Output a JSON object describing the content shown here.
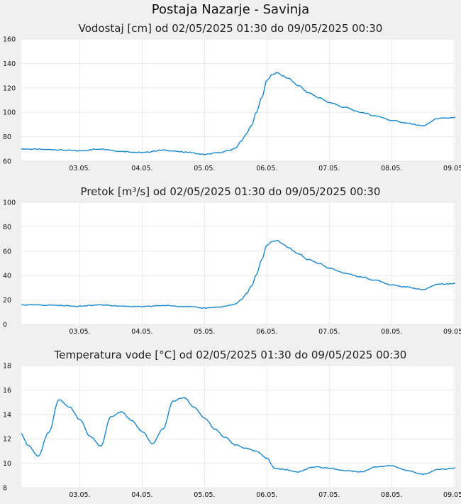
{
  "page": {
    "title": "Postaja Nazarje - Savinja"
  },
  "colors": {
    "background": "#f0f0f0",
    "plot_background": "#ffffff",
    "grid": "#e9e9e9",
    "series": "#1787d0"
  },
  "chart_data": [
    {
      "type": "line",
      "title": "Vodostaj [cm] od 02/05/2025 01:30 do 09/05/2025 00:30",
      "xlabel": "",
      "ylabel": "",
      "ylim": [
        60,
        160
      ],
      "yticks": [
        "60",
        "80",
        "100",
        "120",
        "140",
        "160"
      ],
      "xticks": [
        "03.05.",
        "04.05.",
        "05.05.",
        "06.05.",
        "07.05.",
        "08.05.",
        "09.05."
      ],
      "xrange_days": [
        "02.05. 01:30",
        "09.05. 00:30"
      ],
      "grid": true,
      "series": [
        {
          "x": [
            "02.05. 01:30",
            "02.05. 12:00",
            "03.05. 00:00",
            "03.05. 08:00",
            "03.05. 16:00",
            "04.05. 00:00",
            "04.05. 08:00",
            "04.05. 16:00",
            "05.05. 00:00",
            "05.05. 06:00",
            "05.05. 10:00",
            "05.05. 12:00",
            "05.05. 14:00",
            "05.05. 16:00",
            "05.05. 18:00",
            "05.05. 20:00",
            "05.05. 22:00",
            "06.05. 00:00",
            "06.05. 02:00",
            "06.05. 04:00",
            "06.05. 06:00",
            "06.05. 08:00",
            "06.05. 12:00",
            "06.05. 16:00",
            "06.05. 20:00",
            "07.05. 00:00",
            "07.05. 06:00",
            "07.05. 12:00",
            "07.05. 18:00",
            "08.05. 00:00",
            "08.05. 06:00",
            "08.05. 12:00",
            "08.05. 18:00",
            "09.05. 00:30"
          ],
          "y": [
            70,
            69.5,
            68.5,
            70,
            68,
            67,
            69,
            67.5,
            65.5,
            67,
            69,
            71,
            76,
            82,
            89,
            100,
            112,
            126,
            131,
            132.5,
            130,
            128,
            122,
            116,
            112,
            108,
            104,
            100,
            97,
            93.5,
            91,
            89,
            95,
            95.5
          ]
        }
      ]
    },
    {
      "type": "line",
      "title": "Pretok [m³/s] od 02/05/2025 01:30 do 09/05/2025 00:30",
      "xlabel": "",
      "ylabel": "",
      "ylim": [
        0,
        100
      ],
      "yticks": [
        "0",
        "20",
        "40",
        "60",
        "80",
        "100"
      ],
      "xticks": [
        "03.05.",
        "04.05.",
        "05.05.",
        "06.05.",
        "07.05.",
        "08.05.",
        "09.05."
      ],
      "xrange_days": [
        "02.05. 01:30",
        "09.05. 00:30"
      ],
      "grid": true,
      "series": [
        {
          "x": [
            "02.05. 01:30",
            "02.05. 12:00",
            "03.05. 00:00",
            "03.05. 08:00",
            "03.05. 16:00",
            "04.05. 00:00",
            "04.05. 08:00",
            "04.05. 16:00",
            "05.05. 00:00",
            "05.05. 06:00",
            "05.05. 10:00",
            "05.05. 12:00",
            "05.05. 14:00",
            "05.05. 16:00",
            "05.05. 18:00",
            "05.05. 20:00",
            "05.05. 22:00",
            "06.05. 00:00",
            "06.05. 02:00",
            "06.05. 04:00",
            "06.05. 06:00",
            "06.05. 08:00",
            "06.05. 12:00",
            "06.05. 16:00",
            "06.05. 20:00",
            "07.05. 00:00",
            "07.05. 06:00",
            "07.05. 12:00",
            "07.05. 18:00",
            "08.05. 00:00",
            "08.05. 06:00",
            "08.05. 12:00",
            "08.05. 18:00",
            "09.05. 00:30"
          ],
          "y": [
            16,
            15.8,
            15,
            16,
            15,
            14.5,
            15.5,
            14.8,
            13.5,
            14.2,
            15.5,
            17,
            20,
            25,
            31,
            41,
            53,
            65,
            68,
            68.5,
            66,
            63,
            58,
            53,
            50,
            46,
            42,
            39,
            36,
            32.5,
            30.5,
            28.5,
            33,
            33.5
          ]
        }
      ]
    },
    {
      "type": "line",
      "title": "Temperatura vode [°C] od 02/05/2025 01:30 do 09/05/2025 00:30",
      "xlabel": "",
      "ylabel": "",
      "ylim": [
        8,
        18
      ],
      "yticks": [
        "8",
        "10",
        "12",
        "14",
        "16",
        "18"
      ],
      "xticks": [
        "03.05.",
        "04.05.",
        "05.05.",
        "06.05.",
        "07.05.",
        "08.05.",
        "09.05."
      ],
      "xrange_days": [
        "02.05. 01:30",
        "09.05. 00:30"
      ],
      "grid": true,
      "series": [
        {
          "x": [
            "02.05. 01:30",
            "02.05. 04:00",
            "02.05. 08:00",
            "02.05. 12:00",
            "02.05. 16:00",
            "02.05. 20:00",
            "03.05. 00:00",
            "03.05. 04:00",
            "03.05. 08:00",
            "03.05. 12:00",
            "03.05. 16:00",
            "03.05. 20:00",
            "04.05. 00:00",
            "04.05. 04:00",
            "04.05. 08:00",
            "04.05. 12:00",
            "04.05. 16:00",
            "04.05. 20:00",
            "05.05. 00:00",
            "05.05. 04:00",
            "05.05. 08:00",
            "05.05. 12:00",
            "05.05. 16:00",
            "05.05. 20:00",
            "06.05. 00:00",
            "06.05. 03:00",
            "06.05. 06:00",
            "06.05. 12:00",
            "06.05. 18:00",
            "07.05. 00:00",
            "07.05. 06:00",
            "07.05. 12:00",
            "07.05. 18:00",
            "08.05. 00:00",
            "08.05. 06:00",
            "08.05. 12:00",
            "08.05. 18:00",
            "09.05. 00:30"
          ],
          "y": [
            12.4,
            11.5,
            10.6,
            12.5,
            15.2,
            14.6,
            13.6,
            12.2,
            11.4,
            13.8,
            14.2,
            13.5,
            12.6,
            11.6,
            12.8,
            15.1,
            15.4,
            14.6,
            13.7,
            12.8,
            12.1,
            11.5,
            11.2,
            11.0,
            10.4,
            9.6,
            9.5,
            9.3,
            9.7,
            9.6,
            9.4,
            9.3,
            9.7,
            9.8,
            9.4,
            9.1,
            9.5,
            9.6
          ]
        }
      ]
    }
  ]
}
